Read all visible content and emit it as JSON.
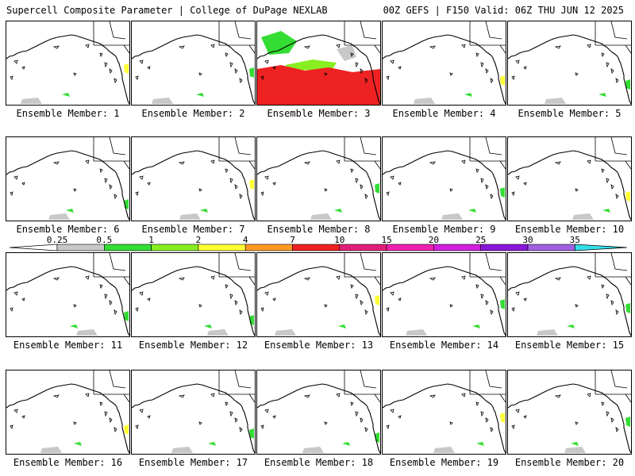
{
  "header": {
    "title_left": "Supercell Composite Parameter | College of DuPage NEXLAB",
    "title_right": "00Z GEFS | F150 Valid: 06Z THU JUN 12 2025"
  },
  "panel_label_prefix": "Ensemble Member:",
  "members": [
    {
      "member": "1",
      "label": "Ensemble Member: 1"
    },
    {
      "member": "2",
      "label": "Ensemble Member: 2"
    },
    {
      "member": "3",
      "label": "Ensemble Member: 3"
    },
    {
      "member": "4",
      "label": "Ensemble Member: 4"
    },
    {
      "member": "5",
      "label": "Ensemble Member: 5"
    },
    {
      "member": "6",
      "label": "Ensemble Member: 6"
    },
    {
      "member": "7",
      "label": "Ensemble Member: 7"
    },
    {
      "member": "8",
      "label": "Ensemble Member: 8"
    },
    {
      "member": "9",
      "label": "Ensemble Member: 9"
    },
    {
      "member": "10",
      "label": "Ensemble Member: 10"
    },
    {
      "member": "11",
      "label": "Ensemble Member: 11"
    },
    {
      "member": "12",
      "label": "Ensemble Member: 12"
    },
    {
      "member": "13",
      "label": "Ensemble Member: 13"
    },
    {
      "member": "14",
      "label": "Ensemble Member: 14"
    },
    {
      "member": "15",
      "label": "Ensemble Member: 15"
    },
    {
      "member": "16",
      "label": "Ensemble Member: 16"
    },
    {
      "member": "17",
      "label": "Ensemble Member: 17"
    },
    {
      "member": "18",
      "label": "Ensemble Member: 18"
    },
    {
      "member": "19",
      "label": "Ensemble Member: 19"
    },
    {
      "member": "20",
      "label": "Ensemble Member: 20"
    }
  ],
  "colorbar": {
    "thresholds": [
      "0.25",
      "0.5",
      "1",
      "2",
      "4",
      "7",
      "10",
      "15",
      "20",
      "25",
      "30",
      "35"
    ],
    "colors": [
      "#c8c8c8",
      "#33dd33",
      "#88ee22",
      "#ffff33",
      "#ff9922",
      "#ee2222",
      "#e0207a",
      "#f020b0",
      "#d020e0",
      "#8a18d8",
      "#a060e0",
      "#33e0e8"
    ]
  }
}
